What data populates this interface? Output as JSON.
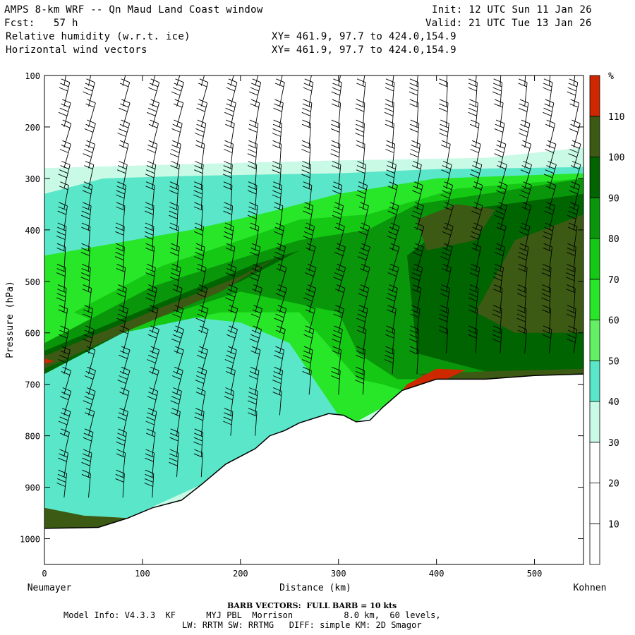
{
  "header": {
    "line1_left": "AMPS 8-km WRF -- Qn Maud Land Coast window",
    "line1_right": "Init: 12 UTC Sun 11 Jan 26",
    "line2_left": "Fcst:   57 h",
    "line2_right": "Valid: 21 UTC Tue 13 Jan 26",
    "line3_left": "Relative humidity (w.r.t. ice)",
    "line3_right": "XY= 461.9, 97.7 to 424.0,154.9",
    "line4_left": "Horizontal wind vectors",
    "line4_right": "XY= 461.9, 97.7 to 424.0,154.9"
  },
  "footer": {
    "barb_note": "BARB VECTORS:  FULL BARB = 10 kts",
    "model_line1": "Model Info: V4.3.3  KF      MYJ PBL  Morrison          8.0 km,  60 levels,",
    "model_line2": "LW: RRTM SW: RRTMG   DIFF: simple KM: 2D Smagor"
  },
  "chart_data": {
    "type": "heatmap",
    "title": "Relative humidity (w.r.t. ice) cross-section with horizontal wind barbs",
    "xlabel": "Distance (km)",
    "ylabel": "Pressure (hPa)",
    "xlim": [
      0,
      550
    ],
    "ylim": [
      1050,
      100
    ],
    "x_ticks": [
      0,
      100,
      200,
      300,
      400,
      500
    ],
    "y_ticks": [
      100,
      200,
      300,
      400,
      500,
      600,
      700,
      800,
      900,
      1000
    ],
    "x_start_label": "Neumayer",
    "x_end_label": "Kohnen",
    "colorbar": {
      "unit": "%",
      "levels": [
        10,
        20,
        30,
        40,
        50,
        60,
        70,
        80,
        90,
        100,
        110
      ],
      "colors": [
        "#ffffff",
        "#ffffff",
        "#ffffff",
        "#c8fae6",
        "#5ae6c8",
        "#64f064",
        "#28e628",
        "#14c814",
        "#0a960a",
        "#006400",
        "#3c5a14",
        "#cd2800"
      ]
    },
    "terrain_surface_hpa": [
      [
        0,
        980
      ],
      [
        55,
        978
      ],
      [
        85,
        960
      ],
      [
        110,
        940
      ],
      [
        140,
        925
      ],
      [
        160,
        895
      ],
      [
        185,
        855
      ],
      [
        205,
        835
      ],
      [
        215,
        825
      ],
      [
        230,
        800
      ],
      [
        245,
        790
      ],
      [
        260,
        775
      ],
      [
        290,
        757
      ],
      [
        305,
        760
      ],
      [
        318,
        773
      ],
      [
        332,
        770
      ],
      [
        345,
        745
      ],
      [
        365,
        712
      ],
      [
        400,
        690
      ],
      [
        450,
        690
      ],
      [
        500,
        683
      ],
      [
        550,
        680
      ]
    ],
    "rh_regions": [
      {
        "level": 30,
        "points": [
          [
            0,
            280
          ],
          [
            150,
            272
          ],
          [
            300,
            265
          ],
          [
            450,
            260
          ],
          [
            550,
            240
          ],
          [
            550,
            980
          ],
          [
            0,
            980
          ]
        ]
      },
      {
        "level": 40,
        "points": [
          [
            0,
            330
          ],
          [
            60,
            300
          ],
          [
            150,
            295
          ],
          [
            300,
            290
          ],
          [
            400,
            282
          ],
          [
            550,
            278
          ],
          [
            550,
            680
          ],
          [
            400,
            690
          ],
          [
            345,
            745
          ],
          [
            318,
            773
          ],
          [
            290,
            757
          ],
          [
            160,
            895
          ],
          [
            85,
            960
          ],
          [
            0,
            950
          ]
        ]
      },
      {
        "level": 60,
        "points": [
          [
            0,
            450
          ],
          [
            150,
            400
          ],
          [
            230,
            365
          ],
          [
            300,
            330
          ],
          [
            400,
            300
          ],
          [
            550,
            290
          ],
          [
            550,
            680
          ],
          [
            400,
            690
          ],
          [
            345,
            745
          ],
          [
            318,
            773
          ],
          [
            300,
            760
          ],
          [
            250,
            620
          ],
          [
            200,
            580
          ],
          [
            100,
            560
          ],
          [
            0,
            640
          ]
        ]
      },
      {
        "level": 70,
        "points": [
          [
            30,
            560
          ],
          [
            120,
            470
          ],
          [
            200,
            420
          ],
          [
            260,
            380
          ],
          [
            330,
            370
          ],
          [
            420,
            320
          ],
          [
            550,
            300
          ],
          [
            550,
            680
          ],
          [
            400,
            690
          ],
          [
            365,
            712
          ],
          [
            345,
            700
          ],
          [
            320,
            690
          ],
          [
            260,
            560
          ],
          [
            180,
            560
          ],
          [
            80,
            600
          ]
        ]
      },
      {
        "level": 80,
        "points": [
          [
            0,
            620
          ],
          [
            110,
            510
          ],
          [
            200,
            455
          ],
          [
            260,
            420
          ],
          [
            330,
            400
          ],
          [
            380,
            350
          ],
          [
            450,
            330
          ],
          [
            550,
            300
          ],
          [
            550,
            680
          ],
          [
            400,
            690
          ],
          [
            360,
            690
          ],
          [
            320,
            640
          ],
          [
            300,
            560
          ],
          [
            200,
            520
          ],
          [
            100,
            580
          ],
          [
            0,
            660
          ]
        ]
      },
      {
        "level": 90,
        "points": [
          [
            0,
            635
          ],
          [
            120,
            540
          ],
          [
            210,
            470
          ],
          [
            260,
            440
          ],
          [
            200,
            500
          ],
          [
            100,
            580
          ],
          [
            0,
            680
          ]
        ]
      },
      {
        "level": 90,
        "points": [
          [
            370,
            450
          ],
          [
            430,
            360
          ],
          [
            550,
            330
          ],
          [
            550,
            680
          ],
          [
            450,
            675
          ],
          [
            380,
            640
          ]
        ]
      },
      {
        "level": 100,
        "points": [
          [
            0,
            645
          ],
          [
            120,
            550
          ],
          [
            200,
            490
          ],
          [
            240,
            450
          ],
          [
            180,
            520
          ],
          [
            80,
            600
          ],
          [
            0,
            670
          ]
        ]
      },
      {
        "level": 100,
        "points": [
          [
            380,
            380
          ],
          [
            420,
            350
          ],
          [
            460,
            360
          ],
          [
            440,
            420
          ],
          [
            390,
            440
          ]
        ]
      },
      {
        "level": 100,
        "points": [
          [
            440,
            560
          ],
          [
            480,
            420
          ],
          [
            550,
            370
          ],
          [
            550,
            600
          ],
          [
            480,
            600
          ]
        ]
      },
      {
        "level": 100,
        "points": [
          [
            0,
            940
          ],
          [
            0,
            980
          ],
          [
            55,
            978
          ],
          [
            85,
            960
          ],
          [
            40,
            955
          ]
        ]
      },
      {
        "level": 100,
        "points": [
          [
            380,
            680
          ],
          [
            450,
            675
          ],
          [
            550,
            670
          ],
          [
            550,
            680
          ],
          [
            450,
            690
          ],
          [
            400,
            690
          ]
        ]
      },
      {
        "level": 110,
        "points": [
          [
            370,
            700
          ],
          [
            400,
            670
          ],
          [
            430,
            672
          ],
          [
            410,
            690
          ],
          [
            365,
            712
          ]
        ]
      },
      {
        "level": 110,
        "points": [
          [
            0,
            650
          ],
          [
            10,
            655
          ],
          [
            0,
            660
          ]
        ]
      }
    ],
    "wind_barb_columns_km": [
      20,
      45,
      80,
      110,
      135,
      160,
      190,
      215,
      240,
      270,
      300,
      325,
      355,
      380,
      410,
      440,
      465,
      490,
      515,
      540
    ],
    "wind_barb_levels_hpa": [
      120,
      160,
      200,
      240,
      280,
      320,
      360,
      400,
      440,
      480,
      520,
      560,
      600,
      640,
      680,
      720,
      760,
      800,
      840,
      880,
      920
    ]
  }
}
